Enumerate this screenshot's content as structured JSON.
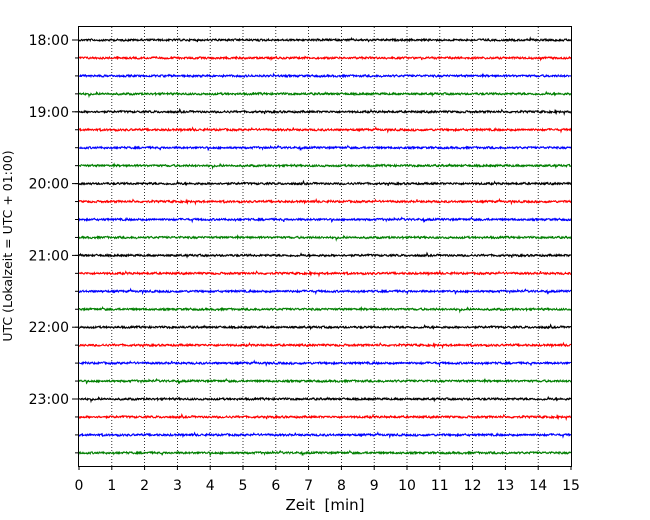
{
  "chart_data": {
    "type": "line",
    "xlabel": "Zeit  [min]",
    "ylabel": "UTC (Lokalzeit = UTC + 01:00)",
    "xlim": [
      0,
      15
    ],
    "x_ticks": [
      "0",
      "1",
      "2",
      "3",
      "4",
      "5",
      "6",
      "7",
      "8",
      "9",
      "10",
      "11",
      "12",
      "13",
      "14",
      "15"
    ],
    "y_tick_labels": [
      "18:00",
      "19:00",
      "20:00",
      "21:00",
      "22:00",
      "23:00"
    ],
    "vertical_grid": true,
    "grid_style": "dotted",
    "trace_interval_minutes": 15,
    "trace_count": 24,
    "trace_colors": [
      "#000000",
      "#ff0000",
      "#0000ff",
      "#007f00"
    ]
  }
}
